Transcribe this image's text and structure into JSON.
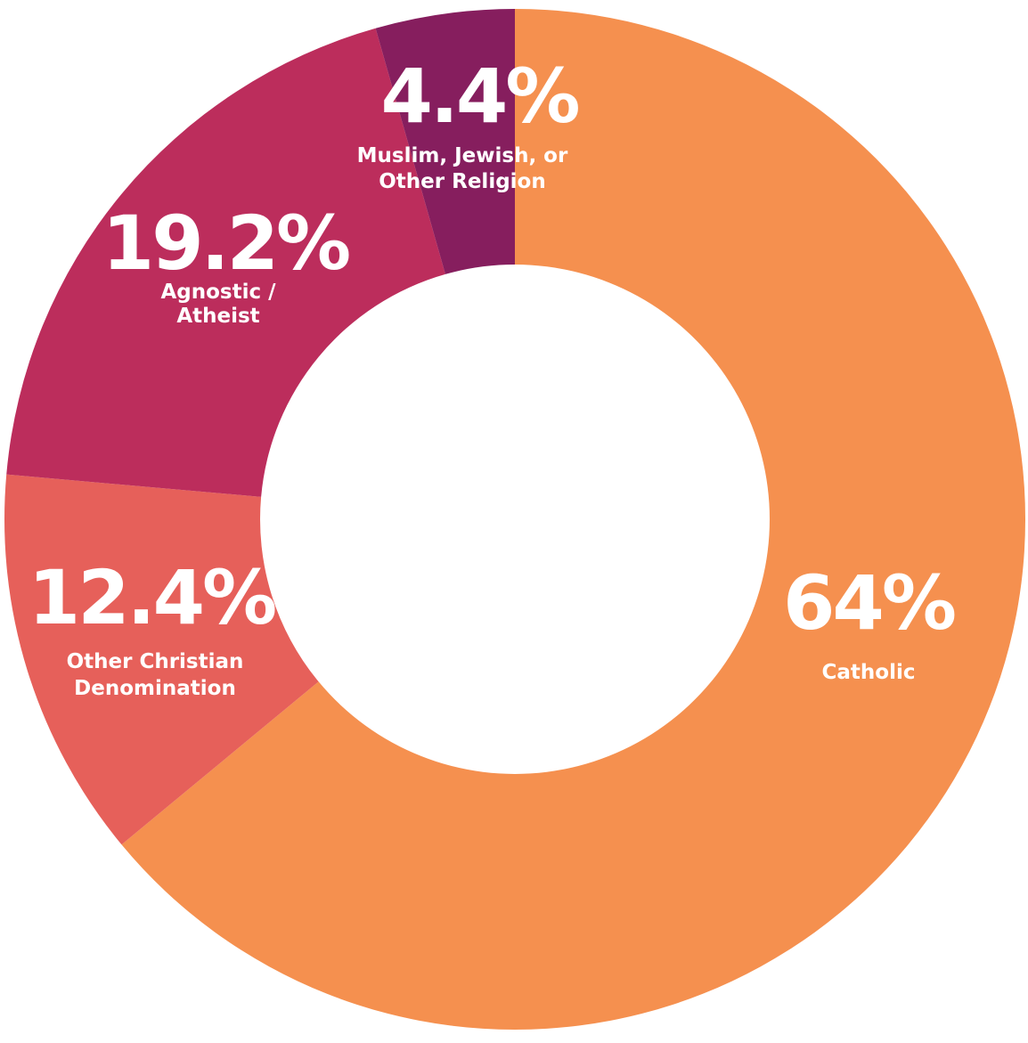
{
  "chart_data": {
    "type": "pie",
    "variant": "donut",
    "unit": "%",
    "slices": [
      {
        "label": "Catholic",
        "display": "64%",
        "value": 64,
        "color": "#F5904F"
      },
      {
        "label": "Other Christian Denomination",
        "display": "12.4%",
        "value": 12.4,
        "color": "#E6605A"
      },
      {
        "label": "Agnostic / Atheist",
        "display": "19.2%",
        "value": 19.2,
        "color": "#BC2D5C"
      },
      {
        "label": "Muslim, Jewish, or Other Religion",
        "display": "4.4%",
        "value": 4.4,
        "color": "#861E5E"
      }
    ],
    "legend": "none",
    "direction": "clockwise-from-top"
  }
}
